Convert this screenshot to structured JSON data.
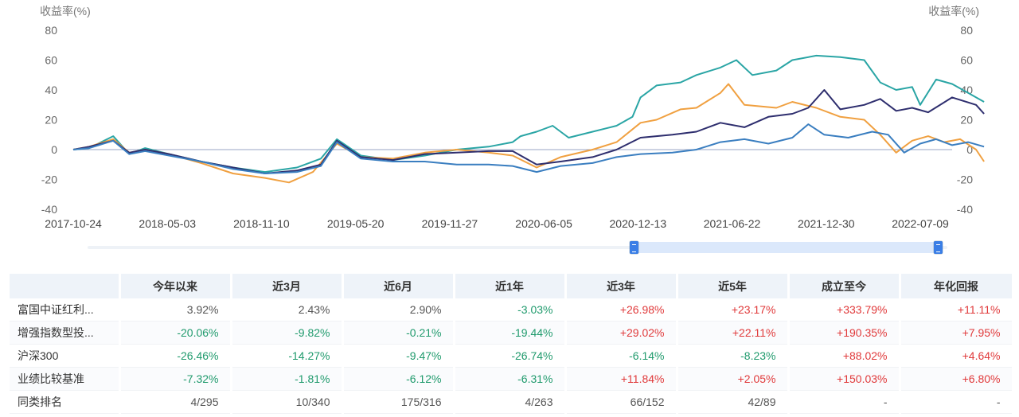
{
  "chart_data": {
    "type": "line",
    "ylabel_left": "收益率(%)",
    "ylabel_right": "收益率(%)",
    "ylim": [
      -40,
      80
    ],
    "yticks": [
      80,
      60,
      40,
      20,
      0,
      -20,
      -40
    ],
    "xlabels": [
      "2017-10-24",
      "2018-05-03",
      "2018-11-10",
      "2019-05-20",
      "2019-11-27",
      "2020-06-05",
      "2020-12-13",
      "2021-06-22",
      "2021-12-30",
      "2022-07-09"
    ],
    "x_domain": [
      0,
      110
    ],
    "series": [
      {
        "name": "富国中证红利指数增强",
        "color": "#2aa5a5",
        "points": [
          [
            0,
            0
          ],
          [
            2,
            1
          ],
          [
            5,
            9
          ],
          [
            7,
            -3
          ],
          [
            9,
            1
          ],
          [
            12,
            -3
          ],
          [
            16,
            -8
          ],
          [
            20,
            -12
          ],
          [
            24,
            -15
          ],
          [
            28,
            -12
          ],
          [
            31,
            -6
          ],
          [
            33,
            7
          ],
          [
            36,
            -4
          ],
          [
            40,
            -7
          ],
          [
            44,
            -4
          ],
          [
            48,
            0
          ],
          [
            52,
            2
          ],
          [
            55,
            5
          ],
          [
            56,
            9
          ],
          [
            58,
            12
          ],
          [
            60,
            16
          ],
          [
            62,
            8
          ],
          [
            65,
            12
          ],
          [
            68,
            16
          ],
          [
            70,
            22
          ],
          [
            71,
            35
          ],
          [
            73,
            43
          ],
          [
            76,
            45
          ],
          [
            78,
            50
          ],
          [
            81,
            55
          ],
          [
            83,
            60
          ],
          [
            85,
            50
          ],
          [
            88,
            53
          ],
          [
            90,
            60
          ],
          [
            93,
            63
          ],
          [
            96,
            62
          ],
          [
            99,
            60
          ],
          [
            101,
            45
          ],
          [
            103,
            40
          ],
          [
            105,
            42
          ],
          [
            106,
            30
          ],
          [
            108,
            47
          ],
          [
            110,
            44
          ],
          [
            112,
            38
          ],
          [
            114,
            32
          ]
        ]
      },
      {
        "name": "增强指数型投资",
        "color": "#f0a040",
        "points": [
          [
            0,
            0
          ],
          [
            2,
            2
          ],
          [
            5,
            7
          ],
          [
            7,
            -2
          ],
          [
            9,
            0
          ],
          [
            12,
            -3
          ],
          [
            16,
            -9
          ],
          [
            20,
            -16
          ],
          [
            24,
            -19
          ],
          [
            27,
            -22
          ],
          [
            30,
            -15
          ],
          [
            33,
            4
          ],
          [
            36,
            -5
          ],
          [
            40,
            -6
          ],
          [
            44,
            -2
          ],
          [
            48,
            0
          ],
          [
            52,
            -2
          ],
          [
            55,
            -4
          ],
          [
            58,
            -12
          ],
          [
            61,
            -5
          ],
          [
            65,
            0
          ],
          [
            68,
            5
          ],
          [
            71,
            18
          ],
          [
            73,
            20
          ],
          [
            76,
            27
          ],
          [
            78,
            28
          ],
          [
            81,
            38
          ],
          [
            82,
            44
          ],
          [
            84,
            30
          ],
          [
            88,
            28
          ],
          [
            90,
            32
          ],
          [
            93,
            28
          ],
          [
            96,
            22
          ],
          [
            99,
            20
          ],
          [
            101,
            10
          ],
          [
            103,
            -2
          ],
          [
            105,
            6
          ],
          [
            107,
            9
          ],
          [
            109,
            5
          ],
          [
            111,
            7
          ],
          [
            113,
            0
          ],
          [
            114,
            -8
          ]
        ]
      },
      {
        "name": "沪深300",
        "color": "#2e2e6e",
        "points": [
          [
            0,
            0
          ],
          [
            2,
            2
          ],
          [
            5,
            6
          ],
          [
            7,
            -2
          ],
          [
            9,
            0
          ],
          [
            12,
            -3
          ],
          [
            16,
            -8
          ],
          [
            20,
            -12
          ],
          [
            24,
            -16
          ],
          [
            28,
            -14
          ],
          [
            31,
            -10
          ],
          [
            33,
            6
          ],
          [
            36,
            -5
          ],
          [
            40,
            -7
          ],
          [
            44,
            -3
          ],
          [
            48,
            -2
          ],
          [
            52,
            -1
          ],
          [
            55,
            -1
          ],
          [
            58,
            -10
          ],
          [
            61,
            -8
          ],
          [
            65,
            -5
          ],
          [
            68,
            0
          ],
          [
            71,
            8
          ],
          [
            75,
            10
          ],
          [
            78,
            12
          ],
          [
            81,
            18
          ],
          [
            84,
            15
          ],
          [
            87,
            22
          ],
          [
            90,
            24
          ],
          [
            92,
            28
          ],
          [
            94,
            40
          ],
          [
            96,
            27
          ],
          [
            99,
            30
          ],
          [
            101,
            34
          ],
          [
            103,
            26
          ],
          [
            105,
            28
          ],
          [
            107,
            25
          ],
          [
            110,
            35
          ],
          [
            113,
            30
          ],
          [
            114,
            24
          ]
        ]
      },
      {
        "name": "业绩比较基准",
        "color": "#3a7ec0",
        "points": [
          [
            0,
            0
          ],
          [
            2,
            1
          ],
          [
            5,
            6
          ],
          [
            7,
            -3
          ],
          [
            9,
            -1
          ],
          [
            12,
            -4
          ],
          [
            16,
            -8
          ],
          [
            20,
            -13
          ],
          [
            24,
            -16
          ],
          [
            28,
            -15
          ],
          [
            31,
            -11
          ],
          [
            33,
            5
          ],
          [
            36,
            -6
          ],
          [
            40,
            -8
          ],
          [
            44,
            -8
          ],
          [
            48,
            -10
          ],
          [
            52,
            -10
          ],
          [
            55,
            -11
          ],
          [
            58,
            -15
          ],
          [
            61,
            -11
          ],
          [
            65,
            -9
          ],
          [
            68,
            -5
          ],
          [
            71,
            -3
          ],
          [
            75,
            -2
          ],
          [
            78,
            0
          ],
          [
            81,
            5
          ],
          [
            84,
            7
          ],
          [
            87,
            4
          ],
          [
            90,
            8
          ],
          [
            92,
            17
          ],
          [
            94,
            10
          ],
          [
            97,
            8
          ],
          [
            100,
            12
          ],
          [
            102,
            10
          ],
          [
            104,
            -2
          ],
          [
            106,
            4
          ],
          [
            108,
            7
          ],
          [
            110,
            3
          ],
          [
            112,
            5
          ],
          [
            114,
            2
          ]
        ]
      }
    ]
  },
  "slider": {
    "start_fraction": 0.635,
    "end_fraction": 0.99
  },
  "table": {
    "headers": [
      "",
      "今年以来",
      "近3月",
      "近6月",
      "近1年",
      "近3年",
      "近5年",
      "成立至今",
      "年化回报"
    ],
    "rows": [
      {
        "name": "富国中证红利...",
        "cells": [
          {
            "v": "3.92%",
            "c": "neu"
          },
          {
            "v": "2.43%",
            "c": "neu"
          },
          {
            "v": "2.90%",
            "c": "neu"
          },
          {
            "v": "-3.03%",
            "c": "neg"
          },
          {
            "v": "+26.98%",
            "c": "pos"
          },
          {
            "v": "+23.17%",
            "c": "pos"
          },
          {
            "v": "+333.79%",
            "c": "pos"
          },
          {
            "v": "+11.11%",
            "c": "pos"
          }
        ]
      },
      {
        "name": "增强指数型投...",
        "cells": [
          {
            "v": "-20.06%",
            "c": "neg"
          },
          {
            "v": "-9.82%",
            "c": "neg"
          },
          {
            "v": "-0.21%",
            "c": "neg"
          },
          {
            "v": "-19.44%",
            "c": "neg"
          },
          {
            "v": "+29.02%",
            "c": "pos"
          },
          {
            "v": "+22.11%",
            "c": "pos"
          },
          {
            "v": "+190.35%",
            "c": "pos"
          },
          {
            "v": "+7.95%",
            "c": "pos"
          }
        ]
      },
      {
        "name": "沪深300",
        "cells": [
          {
            "v": "-26.46%",
            "c": "neg"
          },
          {
            "v": "-14.27%",
            "c": "neg"
          },
          {
            "v": "-9.47%",
            "c": "neg"
          },
          {
            "v": "-26.74%",
            "c": "neg"
          },
          {
            "v": "-6.14%",
            "c": "neg"
          },
          {
            "v": "-8.23%",
            "c": "neg"
          },
          {
            "v": "+88.02%",
            "c": "pos"
          },
          {
            "v": "+4.64%",
            "c": "pos"
          }
        ]
      },
      {
        "name": "业绩比较基准",
        "cells": [
          {
            "v": "-7.32%",
            "c": "neg"
          },
          {
            "v": "-1.81%",
            "c": "neg"
          },
          {
            "v": "-6.12%",
            "c": "neg"
          },
          {
            "v": "-6.31%",
            "c": "neg"
          },
          {
            "v": "+11.84%",
            "c": "pos"
          },
          {
            "v": "+2.05%",
            "c": "pos"
          },
          {
            "v": "+150.03%",
            "c": "pos"
          },
          {
            "v": "+6.80%",
            "c": "pos"
          }
        ]
      },
      {
        "name": "同类排名",
        "cells": [
          {
            "v": "4/295",
            "c": "neu"
          },
          {
            "v": "10/340",
            "c": "neu"
          },
          {
            "v": "175/316",
            "c": "neu"
          },
          {
            "v": "4/263",
            "c": "neu"
          },
          {
            "v": "66/152",
            "c": "neu"
          },
          {
            "v": "42/89",
            "c": "neu"
          },
          {
            "v": "-",
            "c": "neu"
          },
          {
            "v": "-",
            "c": "neu"
          }
        ]
      }
    ]
  }
}
